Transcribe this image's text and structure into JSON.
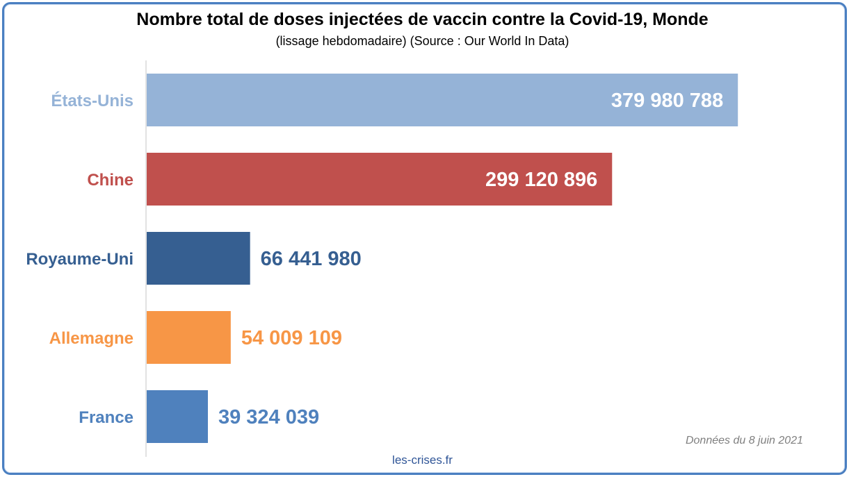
{
  "chart_data": {
    "type": "bar",
    "orientation": "horizontal",
    "title": "Nombre total de doses injectées de vaccin contre la Covid-19, Monde",
    "subtitle": "(lissage hebdomadaire) (Source : Our World In Data)",
    "categories": [
      "États-Unis",
      "Chine",
      "Royaume-Uni",
      "Allemagne",
      "France"
    ],
    "values": [
      379980788,
      299120896,
      66441980,
      54009109,
      39324039
    ],
    "value_labels": [
      "379 980 788",
      "299 120 896",
      "66 441 980",
      "54 009 109",
      "39 324 039"
    ],
    "colors": [
      "#95b3d7",
      "#c0504d",
      "#365f91",
      "#f79646",
      "#4f81bd"
    ],
    "xlim": [
      0,
      400000000
    ],
    "grid": false,
    "legend": "none"
  },
  "note": "Données du 8 juin 2021",
  "footer": "les-crises.fr"
}
